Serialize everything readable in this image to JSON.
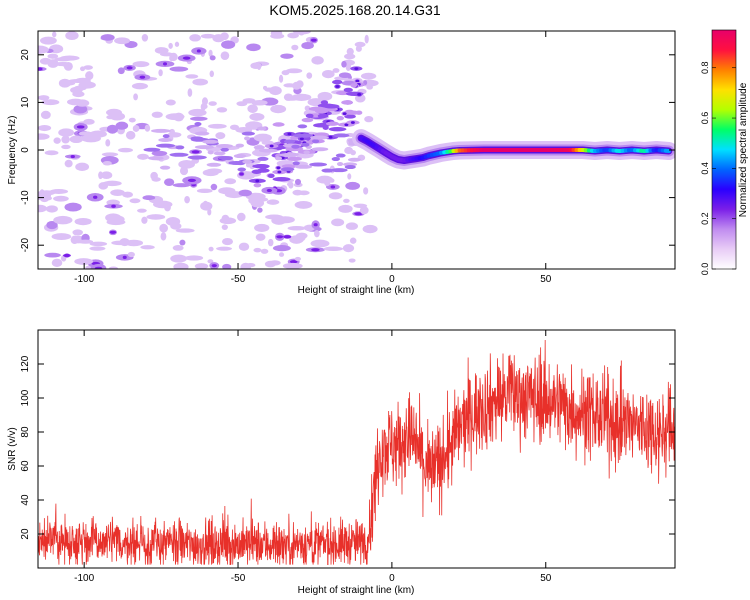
{
  "title": "KOM5.2025.168.20.14.G31",
  "chart_data": [
    {
      "type": "heatmap",
      "xlabel": "Height of straight line (km)",
      "ylabel": "Frequency (Hz)",
      "xlim": [
        -115,
        92
      ],
      "ylim": [
        -25,
        25
      ],
      "xticks": [
        -100,
        -50,
        0,
        50
      ],
      "yticks": [
        -20,
        -10,
        0,
        10,
        20
      ],
      "colorbar": {
        "label": "Normalized spectral amplitude",
        "range": [
          0,
          0.95
        ],
        "ticks": [
          0.0,
          0.2,
          0.4,
          0.6,
          0.8
        ],
        "tick_labels": [
          "0.0",
          "0.2",
          "0.4",
          "0.6",
          "0.8"
        ],
        "colormap": [
          "#ffffff",
          "#e8ccf6",
          "#c08cf0",
          "#7b1fe8",
          "#2a00ff",
          "#0066ff",
          "#00e0ff",
          "#00ff66",
          "#b4ff00",
          "#ffe000",
          "#ff8000",
          "#ff1040",
          "#e8006a"
        ]
      },
      "ridge": [
        {
          "x": -10,
          "f": 2.5,
          "a": 0.28
        },
        {
          "x": -8,
          "f": 1.8,
          "a": 0.3
        },
        {
          "x": -6,
          "f": 1.0,
          "a": 0.3
        },
        {
          "x": -4,
          "f": 0.2,
          "a": 0.28
        },
        {
          "x": -2,
          "f": -0.6,
          "a": 0.25
        },
        {
          "x": 0,
          "f": -1.4,
          "a": 0.25
        },
        {
          "x": 2,
          "f": -2.0,
          "a": 0.25
        },
        {
          "x": 4,
          "f": -2.2,
          "a": 0.25
        },
        {
          "x": 6,
          "f": -2.0,
          "a": 0.28
        },
        {
          "x": 8,
          "f": -1.8,
          "a": 0.3
        },
        {
          "x": 10,
          "f": -1.6,
          "a": 0.32
        },
        {
          "x": 12,
          "f": -1.2,
          "a": 0.35
        },
        {
          "x": 14,
          "f": -0.9,
          "a": 0.38
        },
        {
          "x": 16,
          "f": -0.6,
          "a": 0.4
        },
        {
          "x": 18,
          "f": -0.4,
          "a": 0.5
        },
        {
          "x": 20,
          "f": -0.2,
          "a": 0.6
        },
        {
          "x": 22,
          "f": -0.1,
          "a": 0.8
        },
        {
          "x": 30,
          "f": 0.0,
          "a": 0.95
        },
        {
          "x": 40,
          "f": 0.0,
          "a": 0.95
        },
        {
          "x": 50,
          "f": 0.0,
          "a": 0.95
        },
        {
          "x": 58,
          "f": 0.0,
          "a": 0.92
        },
        {
          "x": 62,
          "f": 0.0,
          "a": 0.7
        },
        {
          "x": 66,
          "f": -0.2,
          "a": 0.45
        },
        {
          "x": 70,
          "f": 0.0,
          "a": 0.35
        },
        {
          "x": 74,
          "f": -0.2,
          "a": 0.5
        },
        {
          "x": 78,
          "f": 0.0,
          "a": 0.38
        },
        {
          "x": 82,
          "f": -0.2,
          "a": 0.55
        },
        {
          "x": 86,
          "f": 0.0,
          "a": 0.32
        },
        {
          "x": 90,
          "f": -0.2,
          "a": 0.45
        }
      ]
    },
    {
      "type": "line",
      "xlabel": "Height of straight line (km)",
      "ylabel": "SNR (v/v)",
      "xlim": [
        -115,
        92
      ],
      "ylim": [
        0,
        140
      ],
      "xticks": [
        -100,
        -50,
        0,
        50
      ],
      "yticks": [
        20,
        40,
        60,
        80,
        100,
        120
      ],
      "series": [
        {
          "color": "#e8302a",
          "trend": [
            [
              -115,
              16
            ],
            [
              -100,
              16
            ],
            [
              -80,
              14
            ],
            [
              -60,
              14
            ],
            [
              -40,
              14
            ],
            [
              -20,
              14
            ],
            [
              -10,
              15
            ],
            [
              -8,
              16
            ],
            [
              -6,
              40
            ],
            [
              -4,
              72
            ],
            [
              0,
              72
            ],
            [
              3,
              74
            ],
            [
              6,
              78
            ],
            [
              9,
              68
            ],
            [
              12,
              56
            ],
            [
              15,
              60
            ],
            [
              18,
              68
            ],
            [
              22,
              82
            ],
            [
              27,
              92
            ],
            [
              32,
              97
            ],
            [
              38,
              102
            ],
            [
              44,
              101
            ],
            [
              50,
              99
            ],
            [
              55,
              97
            ],
            [
              60,
              92
            ],
            [
              66,
              90
            ],
            [
              72,
              86
            ],
            [
              78,
              84
            ],
            [
              84,
              82
            ],
            [
              88,
              80
            ],
            [
              92,
              82
            ]
          ]
        }
      ]
    }
  ]
}
